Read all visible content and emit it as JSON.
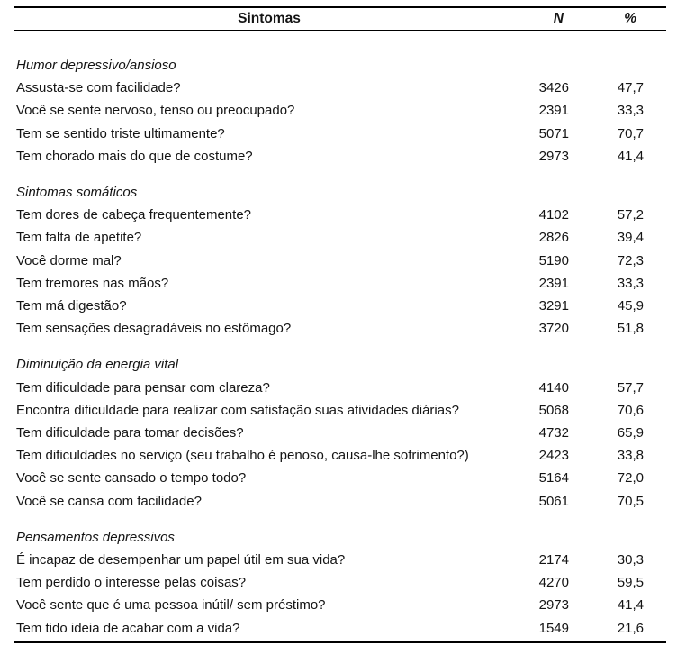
{
  "table": {
    "header": {
      "symptom": "Sintomas",
      "n": "N",
      "pct": "%"
    },
    "sections": [
      {
        "title": "Humor depressivo/ansioso",
        "rows": [
          {
            "q": "Assusta-se com facilidade?",
            "n": "3426",
            "pct": "47,7"
          },
          {
            "q": "Você se sente nervoso, tenso ou preocupado?",
            "n": "2391",
            "pct": "33,3"
          },
          {
            "q": "Tem se sentido triste ultimamente?",
            "n": "5071",
            "pct": "70,7"
          },
          {
            "q": "Tem chorado mais do que de costume?",
            "n": "2973",
            "pct": "41,4"
          }
        ]
      },
      {
        "title": "Sintomas somáticos",
        "rows": [
          {
            "q": "Tem dores de cabeça frequentemente?",
            "n": "4102",
            "pct": "57,2"
          },
          {
            "q": "Tem falta de apetite?",
            "n": "2826",
            "pct": "39,4"
          },
          {
            "q": "Você dorme mal?",
            "n": "5190",
            "pct": "72,3"
          },
          {
            "q": "Tem tremores nas mãos?",
            "n": "2391",
            "pct": "33,3"
          },
          {
            "q": "Tem má digestão?",
            "n": "3291",
            "pct": "45,9"
          },
          {
            "q": "Tem sensações desagradáveis no estômago?",
            "n": "3720",
            "pct": "51,8"
          }
        ]
      },
      {
        "title": "Diminuição da energia vital",
        "rows": [
          {
            "q": "Tem dificuldade para pensar com clareza?",
            "n": "4140",
            "pct": "57,7"
          },
          {
            "q": "Encontra dificuldade para realizar com satisfação suas atividades diárias?",
            "n": "5068",
            "pct": "70,6"
          },
          {
            "q": "Tem dificuldade para tomar decisões?",
            "n": "4732",
            "pct": "65,9"
          },
          {
            "q": "Tem dificuldades no serviço (seu trabalho é penoso, causa-lhe sofrimento?)",
            "n": "2423",
            "pct": "33,8"
          },
          {
            "q": "Você se sente cansado o tempo todo?",
            "n": "5164",
            "pct": "72,0"
          },
          {
            "q": "Você se cansa com facilidade?",
            "n": "5061",
            "pct": "70,5"
          }
        ]
      },
      {
        "title": "Pensamentos depressivos",
        "rows": [
          {
            "q": "É incapaz de desempenhar um papel útil em sua vida?",
            "n": "2174",
            "pct": "30,3"
          },
          {
            "q": "Tem perdido o interesse pelas coisas?",
            "n": "4270",
            "pct": "59,5"
          },
          {
            "q": "Você sente que é uma pessoa inútil/ sem préstimo?",
            "n": "2973",
            "pct": "41,4"
          },
          {
            "q": "Tem tido ideia de acabar com a vida?",
            "n": "1549",
            "pct": "21,6"
          }
        ]
      }
    ]
  }
}
